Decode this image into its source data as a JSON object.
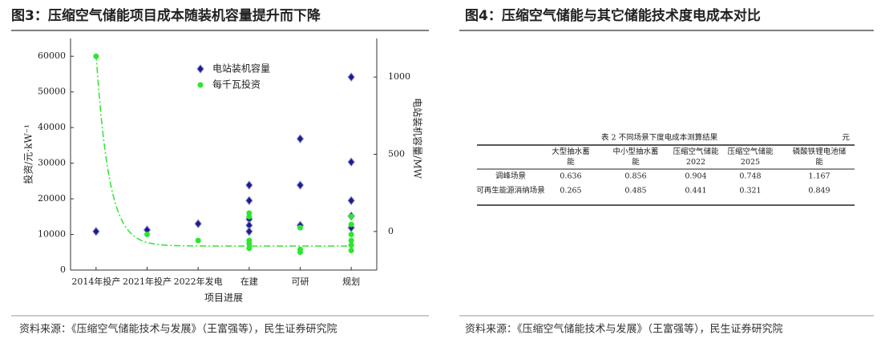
{
  "figures": [
    {
      "title": "图3：压缩空气储能项目成本随装机容量提升而下降",
      "chart": {
        "type": "scatter",
        "categories": [
          "2014年投产",
          "2021年投产",
          "2022年发电",
          "在建",
          "可研",
          "规划"
        ],
        "x_label": "项目进展",
        "y_label": "投资/元·kW⁻¹",
        "y2_label": "电站装机容量/MW",
        "ylim": [
          0,
          65000
        ],
        "yticks": [
          0,
          10000,
          20000,
          30000,
          40000,
          50000,
          60000
        ],
        "y2lim": [
          -250,
          1250
        ],
        "y2ticks": [
          0,
          500,
          1000
        ],
        "legend": "upper-left",
        "series": [
          {
            "name": "电站装机容量",
            "color": "#1c1c8a",
            "marker": "diamond",
            "axis": "y2",
            "values": [
              [
                0
              ],
              [
                10
              ],
              [
                50
              ],
              [
                300,
                200,
                80,
                40,
                0
              ],
              [
                600,
                300,
                40
              ],
              [
                1000,
                450,
                200,
                100,
                25
              ]
            ]
          },
          {
            "name": "每千瓦投资",
            "color": "#2ee62e",
            "marker": "circle",
            "axis": "y",
            "values": [
              [
                60000
              ],
              [
                10000
              ],
              [
                8300
              ],
              [
                16000,
                15000,
                8300,
                7400,
                6100
              ],
              [
                11900,
                5800,
                5000
              ],
              [
                15000,
                12800,
                10000,
                8300,
                7000,
                5500
              ]
            ]
          }
        ]
      },
      "source": "资料来源：《压缩空气储能技术与发展》（王富强等），民生证券研究院"
    },
    {
      "title": "图4：压缩空气储能与其它储能技术度电成本对比",
      "table": {
        "caption": "表 2    不同场景下度电成本测算结果",
        "unit": "元",
        "header": [
          "大型抽水蓄能",
          "中小型抽水蓄能",
          "压缩空气储能2022",
          "压缩空气储能2025",
          "磷酸铁锂电池储能"
        ],
        "rows": [
          [
            "调峰场景",
            "0.636",
            "0.856",
            "0.904",
            "0.748",
            "1.167"
          ],
          [
            "可再生能源消纳场景",
            "0.265",
            "0.485",
            "0.441",
            "0.321",
            "0.849"
          ]
        ]
      },
      "source": "资料来源：《压缩空气储能技术与发展》（王富强等），民生证券研究院"
    }
  ]
}
